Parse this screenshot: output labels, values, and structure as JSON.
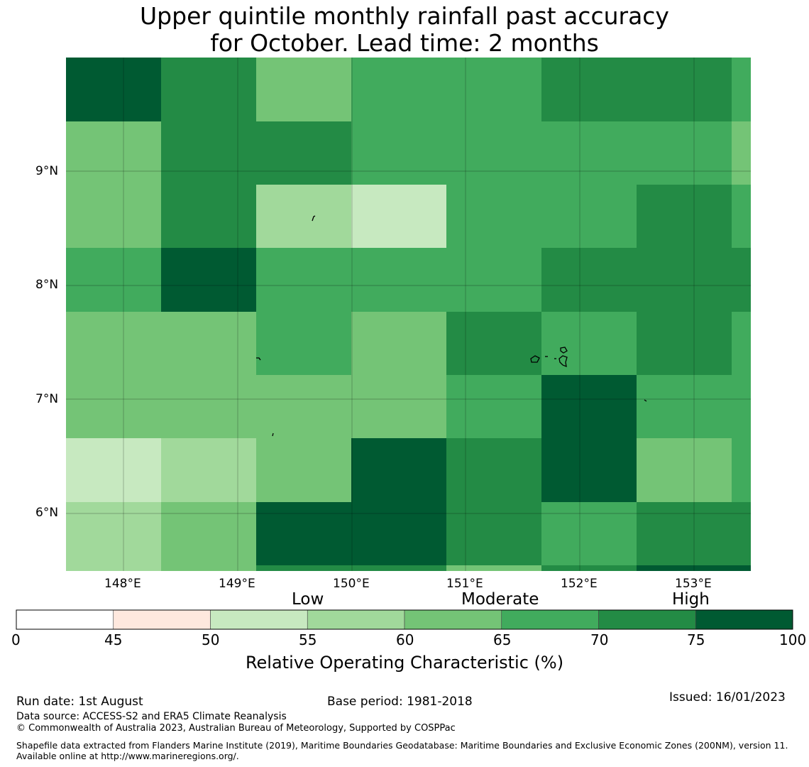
{
  "title": {
    "line1": "Upper quintile monthly rainfall past accuracy",
    "line2": "for October. Lead time: 2 months"
  },
  "map": {
    "lat_labels": [
      "9°N",
      "8°N",
      "7°N",
      "6°N"
    ],
    "lon_labels": [
      "148°E",
      "149°E",
      "150°E",
      "151°E",
      "152°E",
      "153°E"
    ],
    "grid_values": [
      [
        75,
        70,
        60,
        65,
        65,
        70,
        70,
        65
      ],
      [
        60,
        70,
        70,
        65,
        65,
        65,
        65,
        60
      ],
      [
        60,
        70,
        55,
        50,
        65,
        65,
        70,
        65
      ],
      [
        65,
        75,
        65,
        65,
        65,
        70,
        70,
        70
      ],
      [
        60,
        60,
        65,
        60,
        70,
        65,
        70,
        65
      ],
      [
        60,
        60,
        60,
        60,
        65,
        75,
        65,
        65
      ],
      [
        50,
        55,
        60,
        75,
        70,
        75,
        60,
        65
      ],
      [
        55,
        60,
        75,
        75,
        70,
        65,
        70,
        70
      ]
    ]
  },
  "colorbar": {
    "category_labels": [
      "Low",
      "Moderate",
      "High"
    ],
    "tick_labels": [
      "0",
      "45",
      "50",
      "55",
      "60",
      "65",
      "70",
      "75",
      "100"
    ],
    "colors": [
      "#ffffff",
      "#fee8de",
      "#c7e9c0",
      "#a1d99b",
      "#74c476",
      "#41ab5d",
      "#238b45",
      "#005a32"
    ],
    "title": "Relative Operating Characteristic (%)"
  },
  "footer": {
    "run_date": "Run date: 1st August",
    "base_period": "Base period: 1981-2018",
    "issued": "Issued: 16/01/2023",
    "data_source": "Data source: ACCESS-S2 and ERA5 Climate Reanalysis",
    "copyright": "© Commonwealth of Australia 2023, Australian Bureau of Meteorology, Supported by COSPPac",
    "shapefile": "Shapefile data extracted from Flanders Marine Institute (2019), Maritime Boundaries Geodatabase: Maritime Boundaries and Exclusive Economic Zones (200NM), version 11. Available online at http://www.marineregions.org/."
  }
}
